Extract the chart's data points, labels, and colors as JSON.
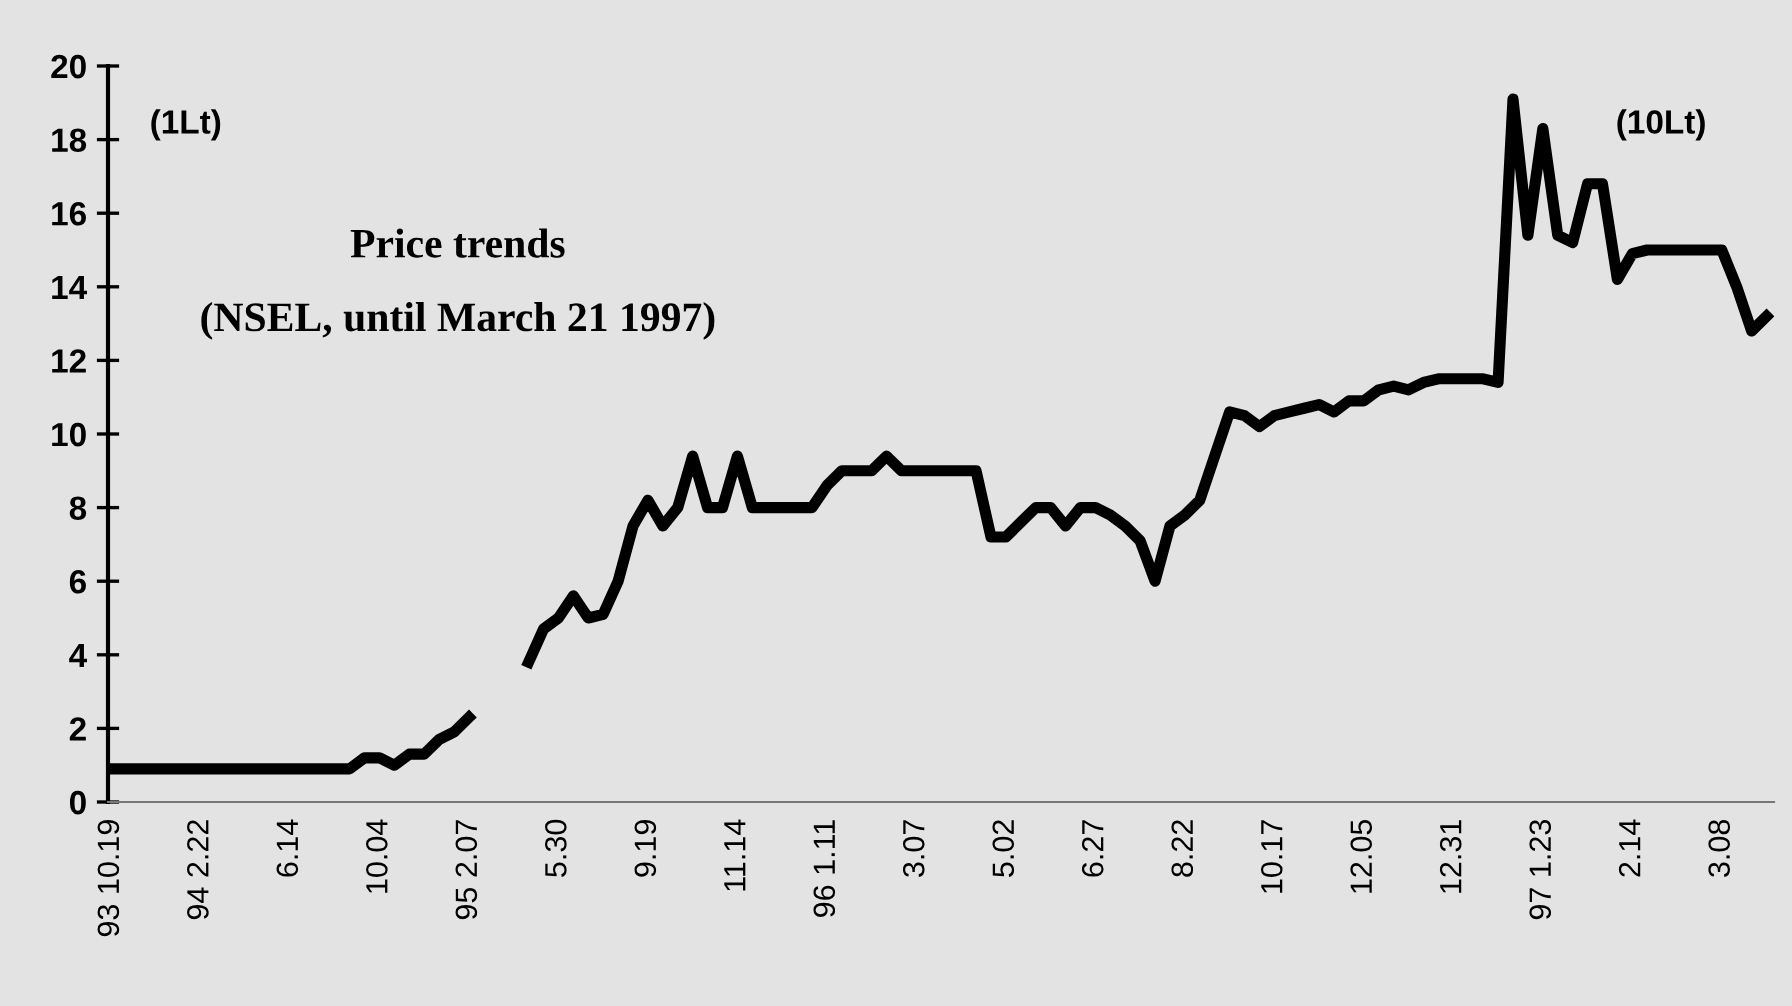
{
  "chart_data": {
    "type": "line",
    "title": "Price trends",
    "subtitle": "(NSEL, until March 21 1997)",
    "annotations": [
      "(1Lt)",
      "(10Lt)"
    ],
    "categories": [
      "93 10.19",
      null,
      null,
      null,
      null,
      null,
      "94 2.22",
      null,
      null,
      null,
      null,
      null,
      "6.14",
      null,
      null,
      null,
      null,
      null,
      "10.04",
      null,
      null,
      null,
      null,
      null,
      "95 2.07",
      null,
      null,
      null,
      null,
      null,
      "5.30",
      null,
      null,
      null,
      null,
      null,
      "9.19",
      null,
      null,
      null,
      null,
      null,
      "11.14",
      null,
      null,
      null,
      null,
      null,
      "96 1.11",
      null,
      null,
      null,
      null,
      null,
      "3.07",
      null,
      null,
      null,
      null,
      null,
      "5.02",
      null,
      null,
      null,
      null,
      null,
      "6.27",
      null,
      null,
      null,
      null,
      null,
      "8.22",
      null,
      null,
      null,
      null,
      null,
      "10.17",
      null,
      null,
      null,
      null,
      null,
      "12.05",
      null,
      null,
      null,
      null,
      null,
      "12.31",
      null,
      null,
      null,
      null,
      null,
      "97 1.23",
      null,
      null,
      null,
      null,
      null,
      "2.14",
      null,
      null,
      null,
      null,
      null,
      "3.08",
      null,
      null,
      null
    ],
    "series": [
      {
        "color": "#000000",
        "values": [
          0.9,
          0.9,
          0.9,
          0.9,
          0.9,
          0.9,
          0.9,
          0.9,
          0.9,
          0.9,
          0.9,
          0.9,
          0.9,
          0.9,
          0.9,
          0.9,
          0.9,
          1.2,
          1.2,
          1.0,
          1.3,
          1.3,
          1.7,
          1.9,
          2.3,
          null,
          null,
          null,
          3.8,
          4.7,
          5.0,
          5.6,
          5.0,
          5.1,
          6.0,
          7.5,
          8.2,
          7.5,
          8.0,
          9.4,
          8.0,
          8.0,
          9.4,
          8.0,
          8.0,
          8.0,
          8.0,
          8.0,
          8.6,
          9.0,
          9.0,
          9.0,
          9.4,
          9.0,
          9.0,
          9.0,
          9.0,
          9.0,
          9.0,
          7.2,
          7.2,
          7.6,
          8.0,
          8.0,
          7.5,
          8.0,
          8.0,
          7.8,
          7.5,
          7.1,
          6.0,
          7.5,
          7.8,
          8.2,
          9.4,
          10.6,
          10.5,
          10.2,
          10.5,
          10.6,
          10.7,
          10.8,
          10.6,
          10.9,
          10.9,
          11.2,
          11.3,
          11.2,
          11.4,
          11.5,
          11.5,
          11.5,
          11.5,
          11.4,
          19.1,
          15.4,
          18.3,
          15.4,
          15.2,
          16.8,
          16.8,
          14.2,
          14.9,
          15.0,
          15.0,
          15.0,
          15.0,
          15.0,
          15.0,
          14.0,
          12.8,
          13.2
        ]
      }
    ],
    "ylim": [
      0,
      20
    ],
    "yticks": [
      0,
      2,
      4,
      6,
      8,
      10,
      12,
      14,
      16,
      18,
      20
    ],
    "grid": false,
    "legend": false,
    "marker": "none",
    "line_style": "solid"
  }
}
